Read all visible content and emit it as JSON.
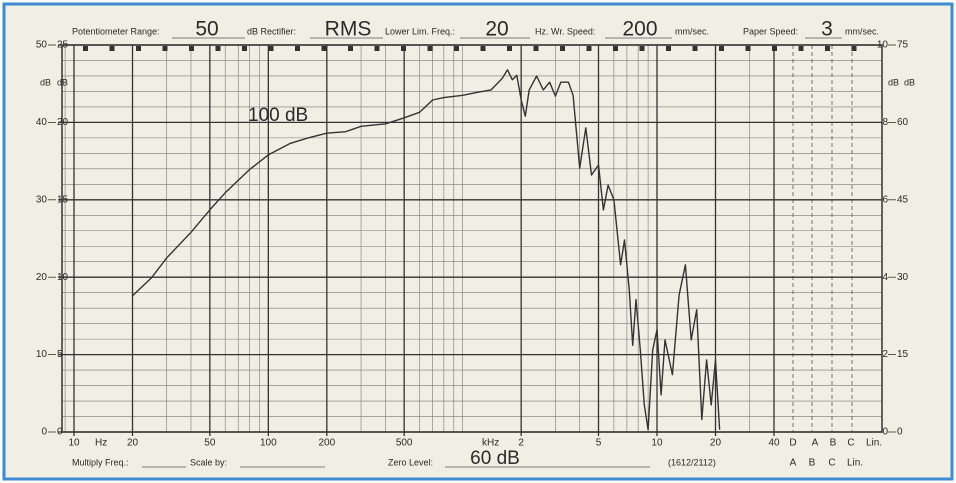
{
  "chart_data": {
    "type": "line",
    "header": {
      "range_label": "Potentiometer Range:",
      "range_value": "50",
      "rectifier_label": "dB Rectifier:",
      "rectifier_value": "RMS",
      "lower_freq_label": "Lower Lim. Freq.:",
      "lower_freq_value": "20",
      "writing_speed_label": "Hz. Wr. Speed:",
      "writing_speed_value": "200",
      "writing_speed_unit": "mm/sec.",
      "paper_speed_label": "Paper Speed:",
      "paper_speed_value": "3",
      "paper_speed_unit": "mm/sec."
    },
    "footer": {
      "multiply_label": "Multiply Freq.:",
      "scale_label": "Scale by:",
      "zero_level_label": "Zero Level:",
      "zero_level_value": "60 dB",
      "chart_code": "(1612/2112)"
    },
    "annotation": "100 dB",
    "axis_units": [
      "dB",
      "dB",
      "dB",
      "dB"
    ],
    "x_units": [
      "Hz",
      "kHz"
    ],
    "weighting_top": [
      "D",
      "A",
      "B",
      "C",
      "Lin."
    ],
    "weighting_bottom": [
      "A",
      "B",
      "C",
      "Lin."
    ],
    "xscale": "log",
    "xlim": [
      10,
      40000
    ],
    "xticks": [
      10,
      20,
      50,
      100,
      200,
      500,
      {
        "value": 2000,
        "label": "2"
      },
      {
        "value": 5000,
        "label": "5"
      },
      {
        "value": 10000,
        "label": "10"
      },
      {
        "value": 20000,
        "label": "20"
      },
      {
        "value": 40000,
        "label": "40"
      }
    ],
    "ylim": [
      0,
      50
    ],
    "yticks": [
      0,
      10,
      20,
      30,
      40,
      50
    ],
    "ylim_b": [
      0,
      25
    ],
    "yticks_b": [
      0,
      5,
      10,
      15,
      20,
      25
    ],
    "y2lim": [
      0,
      10
    ],
    "y2ticks": [
      0,
      2,
      4,
      6,
      8,
      10
    ],
    "y2lim_b": [
      0,
      75
    ],
    "y2ticks_b": [
      0,
      15,
      30,
      45,
      60,
      75
    ],
    "grid": true,
    "x": [
      20,
      25,
      30,
      40,
      50,
      60,
      80,
      100,
      130,
      160,
      200,
      250,
      300,
      400,
      500,
      600,
      700,
      800,
      1000,
      1200,
      1400,
      1600,
      1700,
      1800,
      1900,
      2000,
      2100,
      2200,
      2400,
      2600,
      2800,
      3000,
      3200,
      3500,
      3700,
      4000,
      4300,
      4600,
      5000,
      5300,
      5600,
      6000,
      6500,
      6800,
      7200,
      7500,
      7800,
      8200,
      8600,
      9000,
      9500,
      10000,
      10500,
      11000,
      12000,
      13000,
      14000,
      15000,
      16000,
      17000,
      18000,
      19000,
      20000,
      21000
    ],
    "series": [
      {
        "color": "#333333",
        "values": [
          17.6,
          19.9,
          22.5,
          25.8,
          28.7,
          30.9,
          33.9,
          35.8,
          37.3,
          38,
          38.6,
          38.8,
          39.5,
          39.8,
          40.6,
          41.3,
          42.9,
          43.2,
          43.5,
          43.9,
          44.2,
          45.7,
          46.8,
          45.5,
          46.1,
          42.9,
          40.8,
          44.2,
          46,
          44.2,
          45.2,
          43.4,
          45.2,
          45.2,
          43.5,
          34.1,
          39.3,
          33.2,
          34.5,
          28.7,
          31.9,
          30,
          21.6,
          24.8,
          18.3,
          11.2,
          17.1,
          10.6,
          3.5,
          0.3,
          10.6,
          13.2,
          4.8,
          11.9,
          7.4,
          17.7,
          21.6,
          11.9,
          15.8,
          1.6,
          9.3,
          3.5,
          9.3,
          0.3
        ]
      }
    ]
  }
}
